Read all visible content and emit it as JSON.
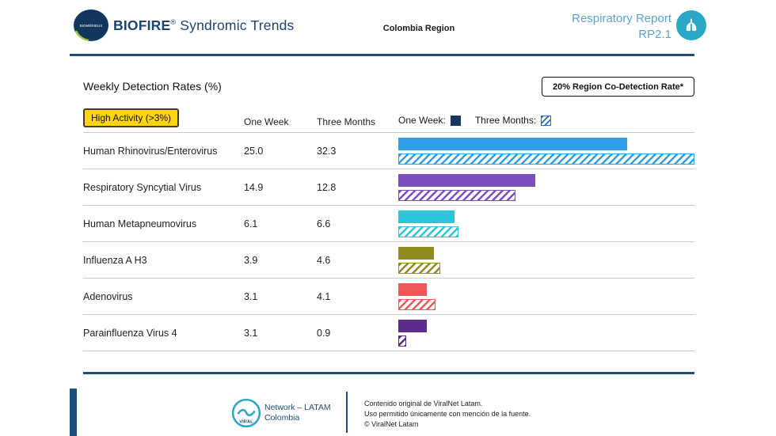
{
  "header": {
    "logo_label": "BIOMÉRIEUX",
    "brand_bold": "BIOFIRE",
    "brand_mark": "®",
    "brand_rest": " Syndromic Trends",
    "region": "Colombia Region",
    "report_title": "Respiratory Report",
    "report_version": "RP2.1"
  },
  "toolbar": {
    "section_title": "Weekly Detection Rates (%)",
    "codetection_label": "20% Region Co-Detection Rate*",
    "high_activity_label": "High Activity (>3%)"
  },
  "table": {
    "col_one_week": "One Week",
    "col_three_months": "Three Months",
    "legend_one_week": "One Week:",
    "legend_three_months": "Three Months:",
    "legend_solid_color": "#17375e",
    "legend_hatch_color": "#2a6cb5"
  },
  "chart_data": {
    "type": "bar",
    "orientation": "horizontal",
    "title": "Weekly Detection Rates (%)",
    "categories": [
      "Human Rhinovirus/Enterovirus",
      "Respiratory Syncytial Virus",
      "Human Metapneumovirus",
      "Influenza A H3",
      "Adenovirus",
      "Parainfluenza Virus 4"
    ],
    "series": [
      {
        "name": "One Week",
        "values": [
          25.0,
          14.9,
          6.1,
          3.9,
          3.1,
          3.1
        ],
        "labels": [
          "25.0",
          "14.9",
          "6.1",
          "3.9",
          "3.1",
          "3.1"
        ]
      },
      {
        "name": "Three Months",
        "values": [
          32.3,
          12.8,
          6.6,
          4.6,
          4.1,
          0.9
        ],
        "labels": [
          "32.3",
          "12.8",
          "6.6",
          "4.6",
          "4.1",
          "0.9"
        ]
      }
    ],
    "xmax": 32.3,
    "row_colors": [
      "#2f9de8",
      "#7a4fbe",
      "#2cc5d9",
      "#8f8c1f",
      "#ef5858",
      "#5b2b8e"
    ],
    "legend_position": "top",
    "grid": "row-separators"
  },
  "footer": {
    "logo_text": "VIRAL",
    "network_line1": "Network – LATAM",
    "network_line2": "Colombia",
    "legal_line1": "Contenido original de ViralNet Latam.",
    "legal_line2": "Uso permitido únicamente con mención de la fuente.",
    "legal_line3": "© ViralNet Latam"
  },
  "colors": {
    "navy": "#1f4e79",
    "accent_blue": "#5da2d5",
    "teal": "#2aa7c7",
    "highlight_yellow": "#ffd60a"
  }
}
